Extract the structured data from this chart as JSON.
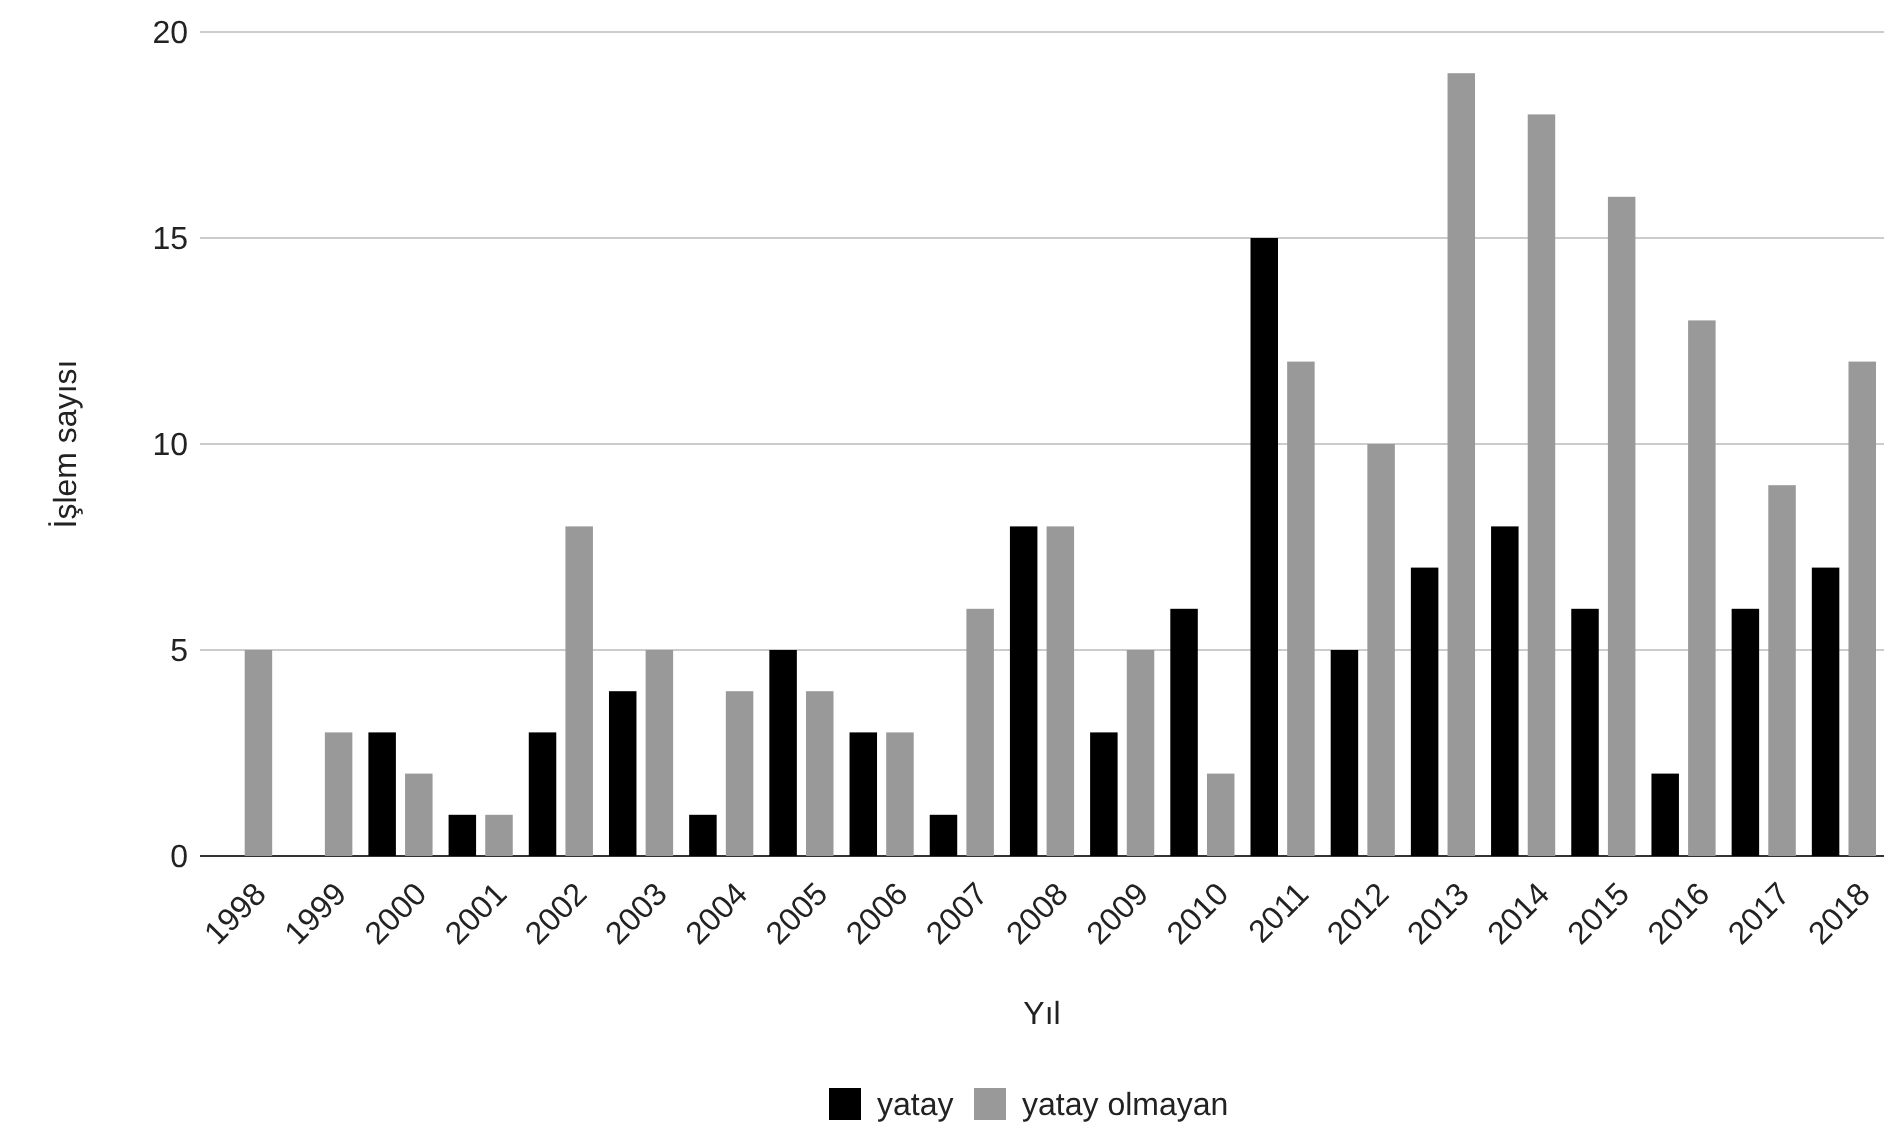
{
  "chart_data": {
    "type": "bar",
    "xlabel": "Yıl",
    "ylabel": "İşlem sayısı",
    "categories": [
      "1998",
      "1999",
      "2000",
      "2001",
      "2002",
      "2003",
      "2004",
      "2005",
      "2006",
      "2007",
      "2008",
      "2009",
      "2010",
      "2011",
      "2012",
      "2013",
      "2014",
      "2015",
      "2016",
      "2017",
      "2018"
    ],
    "series": [
      {
        "name": "yatay",
        "color": "#000000",
        "values": [
          0,
          0,
          3,
          1,
          3,
          4,
          1,
          5,
          3,
          1,
          8,
          3,
          6,
          15,
          5,
          7,
          8,
          6,
          2,
          6,
          7
        ]
      },
      {
        "name": "yatay olmayan",
        "color": "#999999",
        "values": [
          5,
          3,
          2,
          1,
          8,
          5,
          4,
          4,
          3,
          6,
          8,
          5,
          2,
          12,
          10,
          19,
          18,
          16,
          13,
          9,
          12
        ]
      }
    ],
    "ylim": [
      0,
      20
    ],
    "yticks": [
      0,
      5,
      10,
      15,
      20
    ],
    "grid": "y",
    "legend": "bottom"
  }
}
